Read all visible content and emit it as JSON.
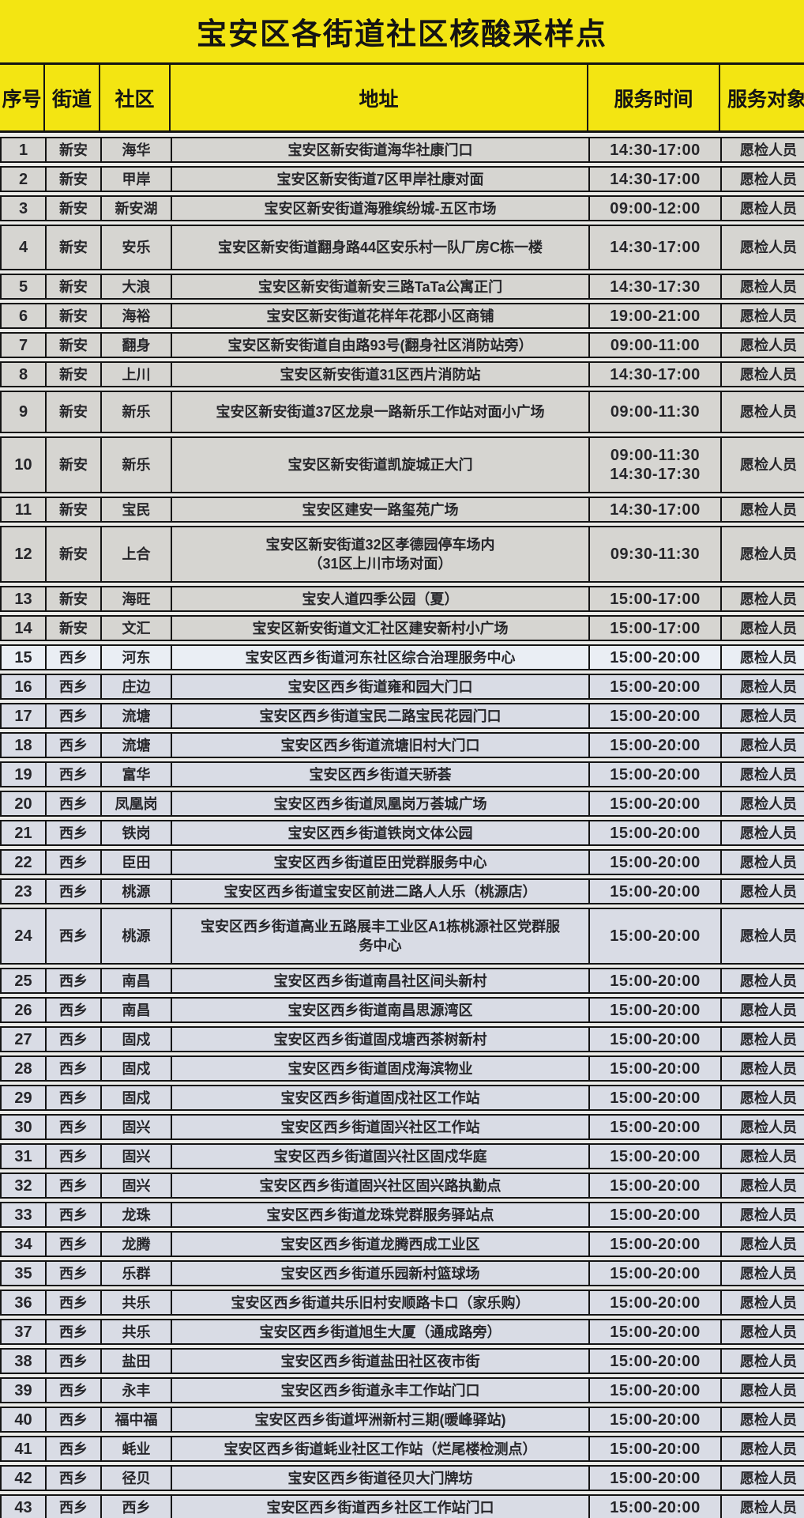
{
  "title": "宝安区各街道社区核酸采样点",
  "colors": {
    "accent_yellow": "#f3e512",
    "border_black": "#141414",
    "row_gray": "#d6d5d1",
    "row_blue": "#d9dce5"
  },
  "table": {
    "headers": [
      "序号",
      "街道",
      "社区",
      "地址",
      "服务时间",
      "服务对象"
    ],
    "rows": [
      {
        "no": "1",
        "street": "新安",
        "community": "海华",
        "address": "宝安区新安街道海华社康门口",
        "time": "14:30-17:00",
        "target": "愿检人员"
      },
      {
        "no": "2",
        "street": "新安",
        "community": "甲岸",
        "address": "宝安区新安街道7区甲岸社康对面",
        "time": "14:30-17:00",
        "target": "愿检人员"
      },
      {
        "no": "3",
        "street": "新安",
        "community": "新安湖",
        "address": "宝安区新安街道海雅缤纷城-五区市场",
        "time": "09:00-12:00",
        "target": "愿检人员"
      },
      {
        "no": "4",
        "street": "新安",
        "community": "安乐",
        "address": "宝安区新安街道翻身路44区安乐村一队厂房C栋一楼",
        "time": "14:30-17:00",
        "target": "愿检人员"
      },
      {
        "no": "5",
        "street": "新安",
        "community": "大浪",
        "address": "宝安区新安街道新安三路TaTa公寓正门",
        "time": "14:30-17:30",
        "target": "愿检人员"
      },
      {
        "no": "6",
        "street": "新安",
        "community": "海裕",
        "address": "宝安区新安街道花样年花郡小区商铺",
        "time": "19:00-21:00",
        "target": "愿检人员"
      },
      {
        "no": "7",
        "street": "新安",
        "community": "翻身",
        "address": "宝安区新安街道自由路93号(翻身社区消防站旁）",
        "time": "09:00-11:00",
        "target": "愿检人员"
      },
      {
        "no": "8",
        "street": "新安",
        "community": "上川",
        "address": "宝安区新安街道31区西片消防站",
        "time": "14:30-17:00",
        "target": "愿检人员"
      },
      {
        "no": "9",
        "street": "新安",
        "community": "新乐",
        "address": "宝安区新安街道37区龙泉一路新乐工作站对面小广场",
        "time": "09:00-11:30",
        "target": "愿检人员"
      },
      {
        "no": "10",
        "street": "新安",
        "community": "新乐",
        "address": "宝安区新安街道凯旋城正大门",
        "time": "09:00-11:30\n14:30-17:30",
        "target": "愿检人员"
      },
      {
        "no": "11",
        "street": "新安",
        "community": "宝民",
        "address": "宝安区建安一路玺苑广场",
        "time": "14:30-17:00",
        "target": "愿检人员"
      },
      {
        "no": "12",
        "street": "新安",
        "community": "上合",
        "address": "宝安区新安街道32区孝德园停车场内\n（31区上川市场对面）",
        "time": "09:30-11:30",
        "target": "愿检人员"
      },
      {
        "no": "13",
        "street": "新安",
        "community": "海旺",
        "address": "宝安人道四季公园（夏）",
        "time": "15:00-17:00",
        "target": "愿检人员"
      },
      {
        "no": "14",
        "street": "新安",
        "community": "文汇",
        "address": "宝安区新安街道文汇社区建安新村小广场",
        "time": "15:00-17:00",
        "target": "愿检人员"
      },
      {
        "no": "15",
        "street": "西乡",
        "community": "河东",
        "address": "宝安区西乡街道河东社区综合治理服务中心",
        "time": "15:00-20:00",
        "target": "愿检人员"
      },
      {
        "no": "16",
        "street": "西乡",
        "community": "庄边",
        "address": "宝安区西乡街道雍和园大门口",
        "time": "15:00-20:00",
        "target": "愿检人员"
      },
      {
        "no": "17",
        "street": "西乡",
        "community": "流塘",
        "address": "宝安区西乡街道宝民二路宝民花园门口",
        "time": "15:00-20:00",
        "target": "愿检人员"
      },
      {
        "no": "18",
        "street": "西乡",
        "community": "流塘",
        "address": "宝安区西乡街道流塘旧村大门口",
        "time": "15:00-20:00",
        "target": "愿检人员"
      },
      {
        "no": "19",
        "street": "西乡",
        "community": "富华",
        "address": "宝安区西乡街道天骄荟",
        "time": "15:00-20:00",
        "target": "愿检人员"
      },
      {
        "no": "20",
        "street": "西乡",
        "community": "凤凰岗",
        "address": "宝安区西乡街道凤凰岗万荟城广场",
        "time": "15:00-20:00",
        "target": "愿检人员"
      },
      {
        "no": "21",
        "street": "西乡",
        "community": "铁岗",
        "address": "宝安区西乡街道铁岗文体公园",
        "time": "15:00-20:00",
        "target": "愿检人员"
      },
      {
        "no": "22",
        "street": "西乡",
        "community": "臣田",
        "address": "宝安区西乡街道臣田党群服务中心",
        "time": "15:00-20:00",
        "target": "愿检人员"
      },
      {
        "no": "23",
        "street": "西乡",
        "community": "桃源",
        "address": "宝安区西乡街道宝安区前进二路人人乐（桃源店）",
        "time": "15:00-20:00",
        "target": "愿检人员"
      },
      {
        "no": "24",
        "street": "西乡",
        "community": "桃源",
        "address": "宝安区西乡街道高业五路展丰工业区A1栋桃源社区党群服\n务中心",
        "time": "15:00-20:00",
        "target": "愿检人员"
      },
      {
        "no": "25",
        "street": "西乡",
        "community": "南昌",
        "address": "宝安区西乡街道南昌社区间头新村",
        "time": "15:00-20:00",
        "target": "愿检人员"
      },
      {
        "no": "26",
        "street": "西乡",
        "community": "南昌",
        "address": "宝安区西乡街道南昌思源湾区",
        "time": "15:00-20:00",
        "target": "愿检人员"
      },
      {
        "no": "27",
        "street": "西乡",
        "community": "固戍",
        "address": "宝安区西乡街道固戍塘西茶树新村",
        "time": "15:00-20:00",
        "target": "愿检人员"
      },
      {
        "no": "28",
        "street": "西乡",
        "community": "固戍",
        "address": "宝安区西乡街道固戍海滨物业",
        "time": "15:00-20:00",
        "target": "愿检人员"
      },
      {
        "no": "29",
        "street": "西乡",
        "community": "固戍",
        "address": "宝安区西乡街道固戍社区工作站",
        "time": "15:00-20:00",
        "target": "愿检人员"
      },
      {
        "no": "30",
        "street": "西乡",
        "community": "固兴",
        "address": "宝安区西乡街道固兴社区工作站",
        "time": "15:00-20:00",
        "target": "愿检人员"
      },
      {
        "no": "31",
        "street": "西乡",
        "community": "固兴",
        "address": "宝安区西乡街道固兴社区固戍华庭",
        "time": "15:00-20:00",
        "target": "愿检人员"
      },
      {
        "no": "32",
        "street": "西乡",
        "community": "固兴",
        "address": "宝安区西乡街道固兴社区固兴路执勤点",
        "time": "15:00-20:00",
        "target": "愿检人员"
      },
      {
        "no": "33",
        "street": "西乡",
        "community": "龙珠",
        "address": "宝安区西乡街道龙珠党群服务驿站点",
        "time": "15:00-20:00",
        "target": "愿检人员"
      },
      {
        "no": "34",
        "street": "西乡",
        "community": "龙腾",
        "address": "宝安区西乡街道龙腾西成工业区",
        "time": "15:00-20:00",
        "target": "愿检人员"
      },
      {
        "no": "35",
        "street": "西乡",
        "community": "乐群",
        "address": "宝安区西乡街道乐园新村篮球场",
        "time": "15:00-20:00",
        "target": "愿检人员"
      },
      {
        "no": "36",
        "street": "西乡",
        "community": "共乐",
        "address": "宝安区西乡街道共乐旧村安顺路卡口（家乐购）",
        "time": "15:00-20:00",
        "target": "愿检人员"
      },
      {
        "no": "37",
        "street": "西乡",
        "community": "共乐",
        "address": "宝安区西乡街道旭生大厦（通成路旁）",
        "time": "15:00-20:00",
        "target": "愿检人员"
      },
      {
        "no": "38",
        "street": "西乡",
        "community": "盐田",
        "address": "宝安区西乡街道盐田社区夜市街",
        "time": "15:00-20:00",
        "target": "愿检人员"
      },
      {
        "no": "39",
        "street": "西乡",
        "community": "永丰",
        "address": "宝安区西乡街道永丰工作站门口",
        "time": "15:00-20:00",
        "target": "愿检人员"
      },
      {
        "no": "40",
        "street": "西乡",
        "community": "福中福",
        "address": "宝安区西乡街道坪洲新村三期(暖峰驿站)",
        "time": "15:00-20:00",
        "target": "愿检人员"
      },
      {
        "no": "41",
        "street": "西乡",
        "community": "蚝业",
        "address": "宝安区西乡街道蚝业社区工作站（烂尾楼检测点）",
        "time": "15:00-20:00",
        "target": "愿检人员"
      },
      {
        "no": "42",
        "street": "西乡",
        "community": "径贝",
        "address": "宝安区西乡街道径贝大门牌坊",
        "time": "15:00-20:00",
        "target": "愿检人员"
      },
      {
        "no": "43",
        "street": "西乡",
        "community": "西乡",
        "address": "宝安区西乡街道西乡社区工作站门口",
        "time": "15:00-20:00",
        "target": "愿检人员"
      }
    ]
  }
}
